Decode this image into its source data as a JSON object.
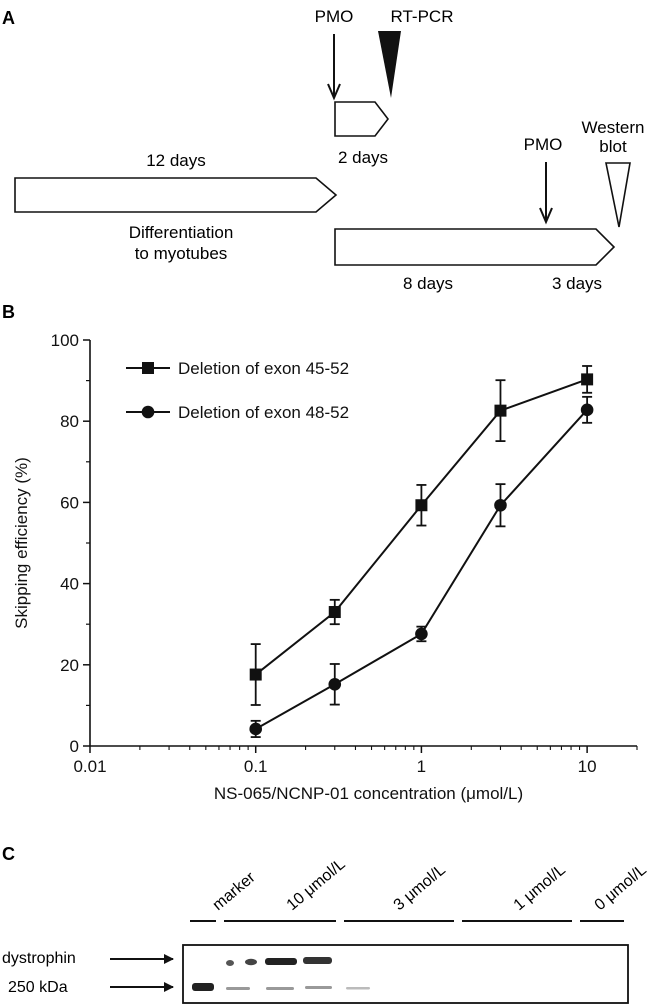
{
  "panels": {
    "a": {
      "label": "A",
      "pmo_top": "PMO",
      "rtpcr": "RT-PCR",
      "days_2": "2 days",
      "days_12": "12 days",
      "differentiation_line1": "Differentiation",
      "differentiation_line2": "to myotubes",
      "pmo_bottom": "PMO",
      "western_line1": "Western",
      "western_line2": "blot",
      "days_8": "8 days",
      "days_3": "3 days"
    },
    "b": {
      "label": "B"
    },
    "c": {
      "label": "C",
      "lanes": [
        "marker",
        "10 μmol/L",
        "3 μmol/L",
        "1 μmol/L",
        "0 μmol/L"
      ],
      "dystrophin": "dystrophin",
      "kda": "250 kDa"
    }
  },
  "chart_data": {
    "type": "line",
    "xscale": "log",
    "x": [
      0.1,
      0.3,
      1,
      3,
      10
    ],
    "xlim": [
      0.01,
      20
    ],
    "xticks": [
      "0.01",
      "0.1",
      "1",
      "10"
    ],
    "ylim": [
      0,
      100
    ],
    "yticks": [
      "0",
      "20",
      "40",
      "60",
      "80",
      "100"
    ],
    "xlabel": "NS-065/NCNP-01 concentration (μmol/L)",
    "ylabel": "Skipping efficiency (%)",
    "legend_position": "top-left",
    "series": [
      {
        "name": "Deletion of exon 45-52",
        "marker": "square",
        "values": [
          17.6,
          33.0,
          59.3,
          82.6,
          90.3
        ],
        "errors": [
          7.5,
          3.0,
          5.0,
          7.5,
          3.3
        ]
      },
      {
        "name": "Deletion of exon 48-52",
        "marker": "circle",
        "values": [
          4.2,
          15.2,
          27.6,
          59.3,
          82.8
        ],
        "errors": [
          2.0,
          5.0,
          1.8,
          5.2,
          3.2
        ]
      }
    ]
  }
}
